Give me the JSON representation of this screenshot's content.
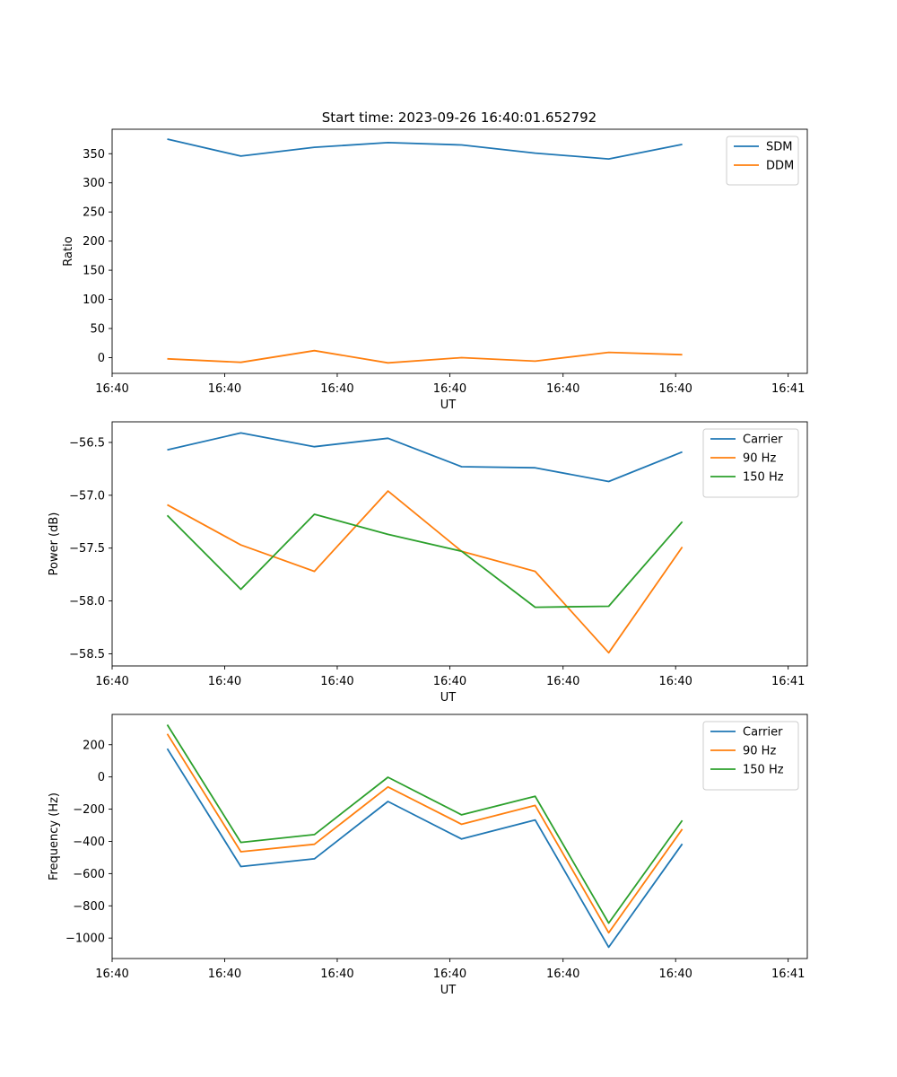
{
  "figure_title": "Start time: 2023-09-26 16:40:01.652792",
  "colors": {
    "blue": "#1f77b4",
    "orange": "#ff7f0e",
    "green": "#2ca02c"
  },
  "chart_data": [
    {
      "type": "line",
      "title": "Start time: 2023-09-26 16:40:01.652792",
      "xlabel": "UT",
      "ylabel": "Ratio",
      "x": [
        0,
        1,
        2,
        3,
        4,
        5,
        6,
        7
      ],
      "xlim": [
        -0.75,
        8.7
      ],
      "x_ticks": [
        -0.75,
        0.78,
        2.31,
        3.84,
        5.38,
        6.91,
        8.44
      ],
      "x_tick_labels": [
        "16:40",
        "16:40",
        "16:40",
        "16:40",
        "16:40",
        "16:40",
        "16:41"
      ],
      "ylim": [
        -27,
        392
      ],
      "y_ticks": [
        0,
        50,
        100,
        150,
        200,
        250,
        300,
        350
      ],
      "y_tick_labels": [
        "0",
        "50",
        "100",
        "150",
        "200",
        "250",
        "300",
        "350"
      ],
      "legend_position": "top-right",
      "series": [
        {
          "name": "SDM",
          "color": "#1f77b4",
          "values": [
            375,
            346,
            361,
            369,
            365,
            351,
            341,
            366
          ]
        },
        {
          "name": "DDM",
          "color": "#ff7f0e",
          "values": [
            -2,
            -8,
            12,
            -9,
            0,
            -6,
            9,
            5
          ]
        }
      ]
    },
    {
      "type": "line",
      "title": "",
      "xlabel": "UT",
      "ylabel": "Power (dB)",
      "x": [
        0,
        1,
        2,
        3,
        4,
        5,
        6,
        7
      ],
      "xlim": [
        -0.75,
        8.7
      ],
      "x_ticks": [
        -0.75,
        0.78,
        2.31,
        3.84,
        5.38,
        6.91,
        8.44
      ],
      "x_tick_labels": [
        "16:40",
        "16:40",
        "16:40",
        "16:40",
        "16:40",
        "16:40",
        "16:41"
      ],
      "ylim": [
        -58.615,
        -56.305
      ],
      "y_ticks": [
        -58.5,
        -58.0,
        -57.5,
        -57.0,
        -56.5
      ],
      "y_tick_labels": [
        "−58.5",
        "−58.0",
        "−57.5",
        "−57.0",
        "−56.5"
      ],
      "legend_position": "top-right",
      "series": [
        {
          "name": "Carrier",
          "color": "#1f77b4",
          "values": [
            -56.57,
            -56.41,
            -56.54,
            -56.46,
            -56.73,
            -56.74,
            -56.87,
            -56.59
          ]
        },
        {
          "name": "90 Hz",
          "color": "#ff7f0e",
          "values": [
            -57.09,
            -57.47,
            -57.72,
            -56.96,
            -57.53,
            -57.72,
            -58.49,
            -57.49
          ]
        },
        {
          "name": "150 Hz",
          "color": "#2ca02c",
          "values": [
            -57.19,
            -57.89,
            -57.18,
            -57.37,
            -57.53,
            -58.06,
            -58.05,
            -57.25
          ]
        }
      ]
    },
    {
      "type": "line",
      "title": "",
      "xlabel": "UT",
      "ylabel": "Frequency (Hz)",
      "x": [
        0,
        1,
        2,
        3,
        4,
        5,
        6,
        7
      ],
      "xlim": [
        -0.75,
        8.7
      ],
      "x_ticks": [
        -0.75,
        0.78,
        2.31,
        3.84,
        5.38,
        6.91,
        8.44
      ],
      "x_tick_labels": [
        "16:40",
        "16:40",
        "16:40",
        "16:40",
        "16:40",
        "16:40",
        "16:41"
      ],
      "ylim": [
        -1127,
        388
      ],
      "y_ticks": [
        -1000,
        -800,
        -600,
        -400,
        -200,
        0,
        200
      ],
      "y_tick_labels": [
        "−1000",
        "−800",
        "−600",
        "−400",
        "−200",
        "0",
        "200"
      ],
      "legend_position": "top-right",
      "series": [
        {
          "name": "Carrier",
          "color": "#1f77b4",
          "values": [
            175,
            -556,
            -508,
            -152,
            -385,
            -267,
            -1057,
            -416
          ]
        },
        {
          "name": "90 Hz",
          "color": "#ff7f0e",
          "values": [
            267,
            -464,
            -418,
            -62,
            -294,
            -177,
            -967,
            -324
          ]
        },
        {
          "name": "150 Hz",
          "color": "#2ca02c",
          "values": [
            324,
            -406,
            -358,
            -2,
            -235,
            -120,
            -907,
            -270
          ]
        }
      ]
    }
  ]
}
